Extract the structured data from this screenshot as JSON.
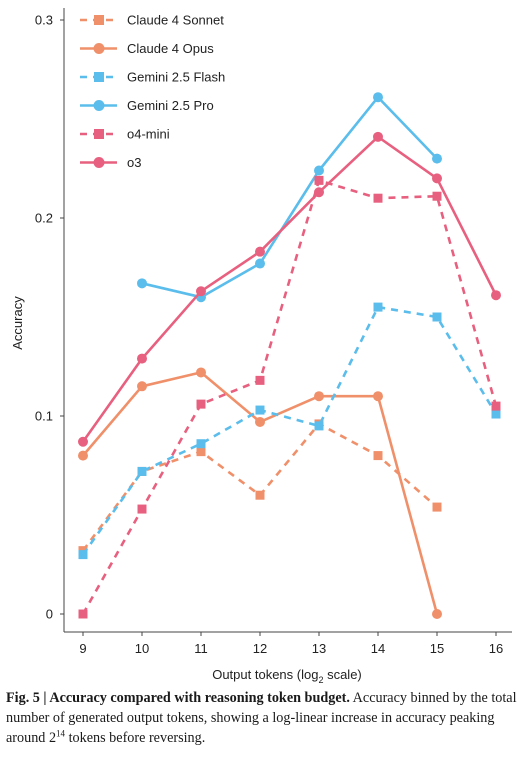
{
  "chart_data": {
    "type": "line",
    "xlabel": "Output tokens (log",
    "xlabel_sub": "2",
    "xlabel_suffix": " scale)",
    "ylabel": "Accuracy",
    "x_ticks": [
      9,
      10,
      11,
      12,
      13,
      14,
      15,
      16
    ],
    "y_ticks": [
      "0",
      "0.1",
      "0.2",
      "0.3"
    ],
    "xlim": [
      9,
      16
    ],
    "ylim": [
      0,
      0.3
    ],
    "grid": false,
    "legend_position": "top-left",
    "series": [
      {
        "name": "Claude 4 Sonnet",
        "color": "#F0906A",
        "dashed": true,
        "marker": "square",
        "points": [
          [
            9,
            0.032
          ],
          [
            10,
            0.072
          ],
          [
            11,
            0.082
          ],
          [
            12,
            0.06
          ],
          [
            13,
            0.096
          ],
          [
            14,
            0.08
          ],
          [
            15,
            0.054
          ]
        ]
      },
      {
        "name": "Claude 4 Opus",
        "color": "#F0906A",
        "dashed": false,
        "marker": "circle",
        "points": [
          [
            9,
            0.08
          ],
          [
            10,
            0.115
          ],
          [
            11,
            0.122
          ],
          [
            12,
            0.097
          ],
          [
            13,
            0.11
          ],
          [
            14,
            0.11
          ],
          [
            15,
            0.0
          ]
        ]
      },
      {
        "name": "Gemini 2.5 Flash",
        "color": "#5BBDEB",
        "dashed": true,
        "marker": "square",
        "points": [
          [
            9,
            0.03
          ],
          [
            10,
            0.072
          ],
          [
            11,
            0.086
          ],
          [
            12,
            0.103
          ],
          [
            13,
            0.095
          ],
          [
            14,
            0.155
          ],
          [
            15,
            0.15
          ],
          [
            16,
            0.101
          ]
        ]
      },
      {
        "name": "Gemini 2.5 Pro",
        "color": "#5BBDEB",
        "dashed": false,
        "marker": "circle",
        "points": [
          [
            10,
            0.167
          ],
          [
            11,
            0.16
          ],
          [
            12,
            0.177
          ],
          [
            13,
            0.224
          ],
          [
            14,
            0.261
          ],
          [
            15,
            0.23
          ]
        ]
      },
      {
        "name": "o4-mini",
        "color": "#E8607F",
        "dashed": true,
        "marker": "square",
        "points": [
          [
            9,
            0.0
          ],
          [
            10,
            0.053
          ],
          [
            11,
            0.106
          ],
          [
            12,
            0.118
          ],
          [
            13,
            0.219
          ],
          [
            14,
            0.21
          ],
          [
            15,
            0.211
          ],
          [
            16,
            0.105
          ]
        ]
      },
      {
        "name": "o3",
        "color": "#E8607F",
        "dashed": false,
        "marker": "circle",
        "points": [
          [
            9,
            0.087
          ],
          [
            10,
            0.129
          ],
          [
            11,
            0.163
          ],
          [
            12,
            0.183
          ],
          [
            13,
            0.213
          ],
          [
            14,
            0.241
          ],
          [
            15,
            0.22
          ],
          [
            16,
            0.161
          ]
        ]
      }
    ]
  },
  "caption": {
    "label": "Fig. 5 | Accuracy compared with reasoning token budget.",
    "text_1": " Accuracy binned by the total number of generated output tokens, showing a log-linear increase in accuracy peaking around 2",
    "superscript": "14",
    "text_2": " tokens before reversing."
  }
}
